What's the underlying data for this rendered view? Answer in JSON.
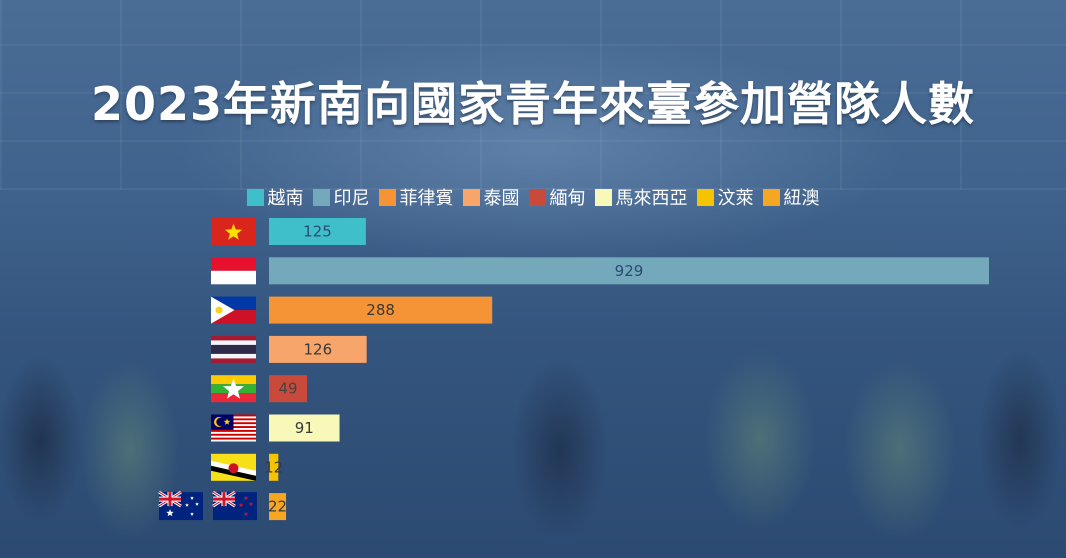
{
  "chart_data": {
    "type": "bar",
    "orientation": "horizontal",
    "title": "2023年新南向國家青年來臺參加營隊人數",
    "categories": [
      "越南",
      "印尼",
      "菲律賓",
      "泰國",
      "緬甸",
      "馬來西亞",
      "汶萊",
      "紐澳"
    ],
    "values": [
      125,
      929,
      288,
      126,
      49,
      91,
      12,
      22
    ],
    "colors": [
      "#3fbfca",
      "#74a8bb",
      "#f59337",
      "#f7a56a",
      "#c94a3a",
      "#f8f8b8",
      "#f5c400",
      "#f5a623"
    ],
    "label_colors": [
      "#2c4a72",
      "#2c4a72",
      "#3a3a3a",
      "#3a3a3a",
      "#444444",
      "#3a3a3a",
      "#3a3a3a",
      "#3a3a3a"
    ],
    "xlim": [
      0,
      929
    ],
    "legend_position": "top-center",
    "grid": false
  },
  "legend": [
    {
      "label": "越南",
      "color": "#3fbfca"
    },
    {
      "label": "印尼",
      "color": "#74a8bb"
    },
    {
      "label": "菲律賓",
      "color": "#f59337"
    },
    {
      "label": "泰國",
      "color": "#f7a56a"
    },
    {
      "label": "緬甸",
      "color": "#c94a3a"
    },
    {
      "label": "馬來西亞",
      "color": "#f8f8b8"
    },
    {
      "label": "汶萊",
      "color": "#f5c400"
    },
    {
      "label": "紐澳",
      "color": "#f5a623"
    }
  ],
  "flags": [
    "vietnam-flag-icon",
    "indonesia-flag-icon",
    "philippines-flag-icon",
    "thailand-flag-icon",
    "myanmar-flag-icon",
    "malaysia-flag-icon",
    "brunei-flag-icon",
    "australia-flag-icon",
    "new-zealand-flag-icon"
  ]
}
